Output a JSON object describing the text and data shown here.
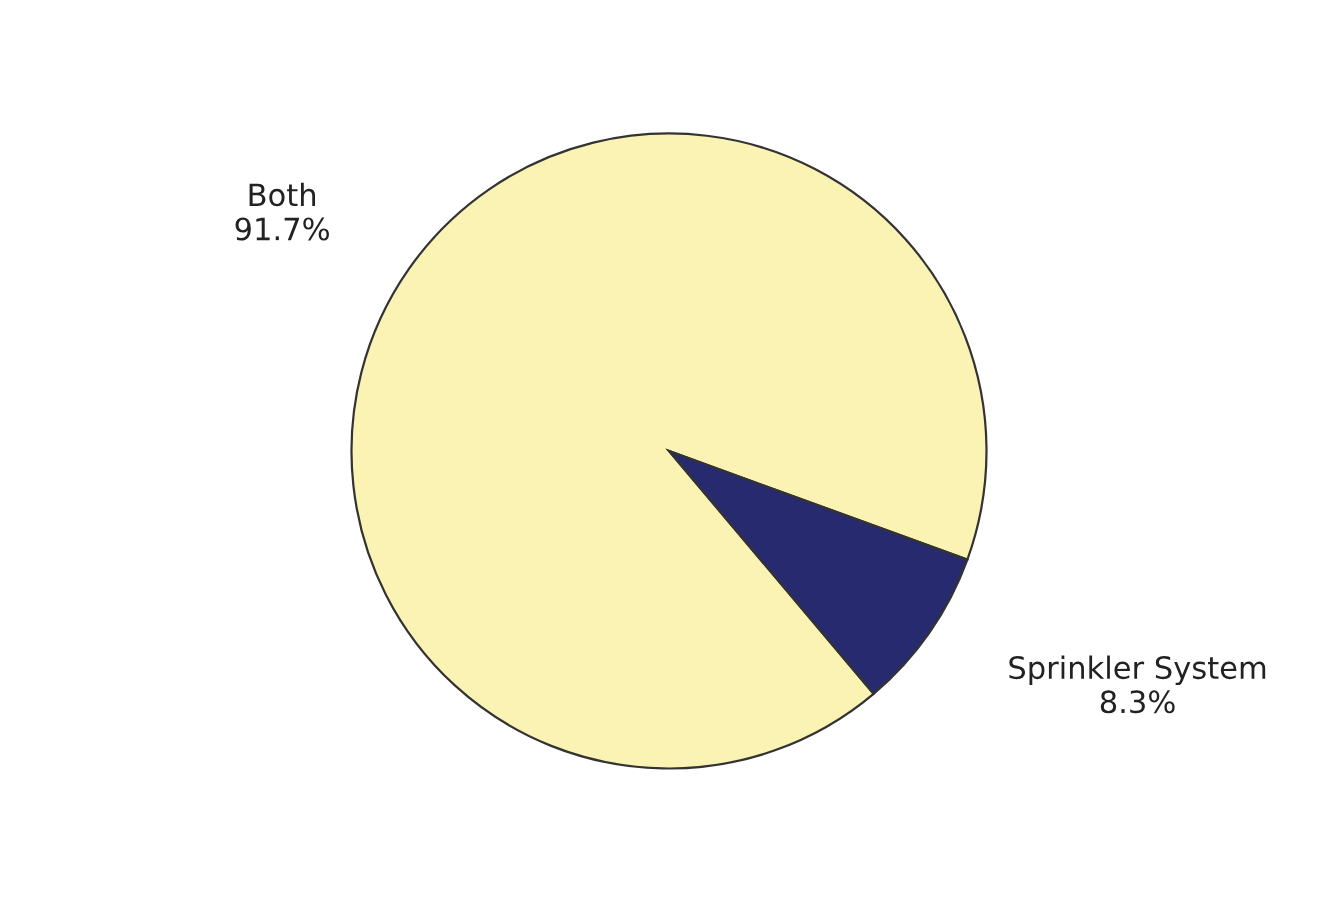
{
  "chart_data": {
    "type": "pie",
    "categories": [
      "Both",
      "Sprinkler System"
    ],
    "values": [
      91.7,
      8.3
    ],
    "colors": [
      "#fbf3b3",
      "#282a70"
    ],
    "value_labels": [
      "91.7%",
      "8.3%"
    ],
    "legend": false
  }
}
